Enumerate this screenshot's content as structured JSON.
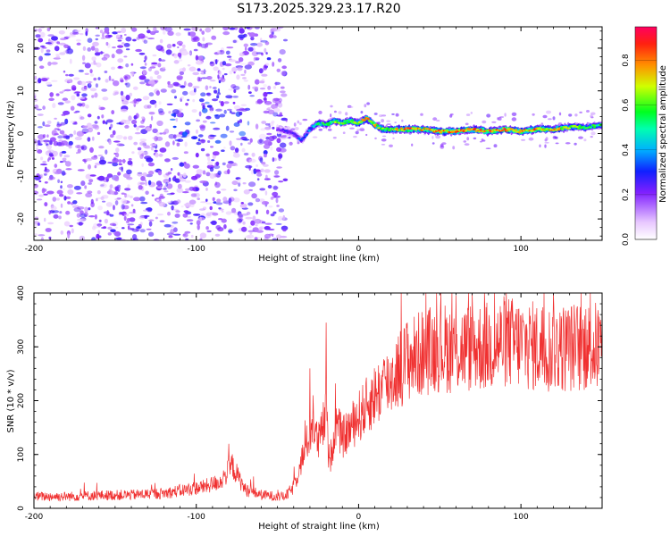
{
  "title": "S173.2025.329.23.17.R20",
  "chart_data": [
    {
      "type": "heatmap",
      "xlabel": "Height of straight line (km)",
      "ylabel": "Frequency (Hz)",
      "xlim": [
        -200,
        150
      ],
      "ylim": [
        -25,
        25
      ],
      "xticks": [
        -200,
        -100,
        0,
        100
      ],
      "xtick_labels": [
        "-200",
        "-100",
        "0",
        "100"
      ],
      "yticks": [
        20,
        10,
        0,
        -10,
        -20
      ],
      "ytick_labels": [
        "20",
        "10",
        "0",
        "-10",
        "-20"
      ],
      "grid": false,
      "colorbar": {
        "label": "Normalized spectral amplitude",
        "range": [
          0.0,
          0.95
        ],
        "ticks": [
          0.0,
          0.2,
          0.4,
          0.6,
          0.8
        ],
        "tick_labels": [
          "0.0",
          "0.2",
          "0.4",
          "0.6",
          "0.8"
        ],
        "colors": [
          "#ffffff",
          "#a040ff",
          "#2020ff",
          "#00c0ff",
          "#00ff40",
          "#e0ff00",
          "#ff8000",
          "#ff0040"
        ]
      },
      "noise_region_x": [
        -200,
        -45
      ],
      "ridge": {
        "x": [
          -50,
          -40,
          -35,
          -30,
          -25,
          -20,
          -15,
          -10,
          -5,
          0,
          5,
          10,
          15,
          20,
          30,
          40,
          50,
          60,
          70,
          80,
          90,
          100,
          110,
          120,
          130,
          140,
          150
        ],
        "freq": [
          1.0,
          0.0,
          -1.5,
          1.0,
          2.5,
          2.0,
          3.0,
          2.5,
          3.0,
          2.5,
          3.5,
          2.0,
          1.0,
          1.0,
          1.0,
          1.0,
          0.5,
          0.5,
          1.0,
          0.5,
          1.0,
          0.5,
          1.0,
          1.0,
          1.5,
          1.5,
          2.0
        ],
        "amplitude": [
          0.25,
          0.3,
          0.35,
          0.4,
          0.55,
          0.6,
          0.7,
          0.65,
          0.75,
          0.8,
          0.85,
          0.8,
          0.7,
          0.7,
          0.9,
          0.8,
          0.9,
          0.85,
          0.9,
          0.85,
          0.9,
          0.85,
          0.9,
          0.8,
          0.7,
          0.6,
          0.6
        ]
      }
    },
    {
      "type": "line",
      "xlabel": "Height of straight line (km)",
      "ylabel": "SNR (10 * v/v)",
      "xlim": [
        -200,
        150
      ],
      "ylim": [
        0,
        400
      ],
      "xticks": [
        -200,
        -100,
        0,
        100
      ],
      "xtick_labels": [
        "-200",
        "-100",
        "0",
        "100"
      ],
      "yticks": [
        0,
        100,
        200,
        300,
        400
      ],
      "ytick_labels": [
        "0",
        "100",
        "200",
        "300",
        "400"
      ],
      "grid": false,
      "line_color": "#f03030",
      "series": [
        {
          "name": "SNR",
          "x": [
            -200,
            -180,
            -160,
            -140,
            -120,
            -105,
            -95,
            -85,
            -80,
            -78,
            -70,
            -60,
            -50,
            -45,
            -40,
            -35,
            -30,
            -28,
            -25,
            -22,
            -20,
            -18,
            -16,
            -14,
            -10,
            -5,
            0,
            5,
            10,
            15,
            20,
            25,
            30,
            40,
            50,
            60,
            70,
            80,
            90,
            100,
            110,
            120,
            130,
            140,
            150
          ],
          "mean": [
            22,
            22,
            24,
            25,
            28,
            35,
            40,
            50,
            70,
            80,
            35,
            25,
            22,
            22,
            40,
            90,
            140,
            160,
            120,
            150,
            180,
            80,
            120,
            160,
            130,
            150,
            170,
            190,
            210,
            225,
            240,
            260,
            275,
            290,
            300,
            295,
            300,
            300,
            310,
            305,
            300,
            295,
            300,
            300,
            300
          ],
          "peaks": [
            [
              -80,
              120
            ],
            [
              -20,
              345
            ],
            [
              -30,
              260
            ],
            [
              30,
              345
            ],
            [
              60,
              395
            ],
            [
              120,
              400
            ],
            [
              140,
              370
            ]
          ]
        }
      ]
    }
  ]
}
